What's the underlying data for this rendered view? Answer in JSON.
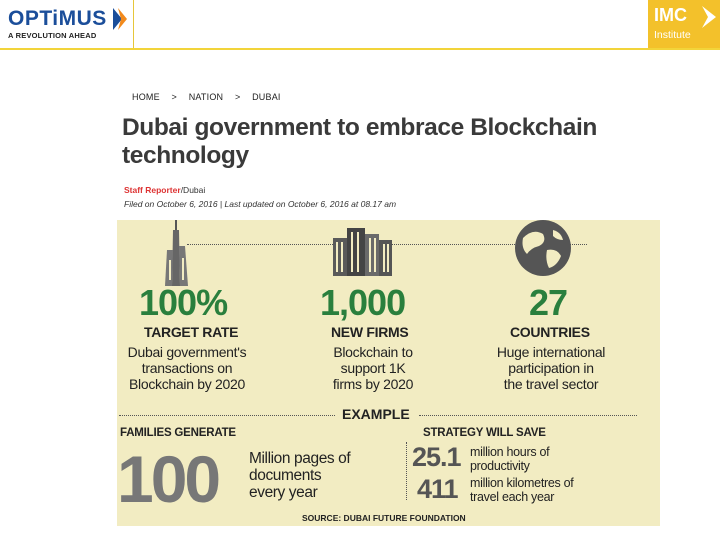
{
  "header": {
    "logo_name": "OPTiMUS",
    "logo_tagline": "A REVOLUTION AHEAD",
    "partner_logo": "IMC",
    "partner_sub": "Institute"
  },
  "breadcrumb": [
    "HOME",
    ">",
    "NATION",
    ">",
    "DUBAI"
  ],
  "article": {
    "headline": "Dubai government to embrace Blockchain technology",
    "reporter": "Staff Reporter",
    "location": "/Dubai",
    "filed": "Filed on October 6, 2016 | Last updated on October 6, 2016 at 08.17 am"
  },
  "infographic": {
    "stats": [
      {
        "number": "100%",
        "label": "TARGET RATE",
        "desc": [
          "Dubai government's",
          "transactions on",
          "Blockchain by 2020"
        ],
        "icon": "burj-tower-icon"
      },
      {
        "number": "1,000",
        "label": "NEW FIRMS",
        "desc": [
          "Blockchain to",
          "support 1K",
          "firms by 2020"
        ],
        "icon": "buildings-icon"
      },
      {
        "number": "27",
        "label": "COUNTRIES",
        "desc": [
          "Huge international",
          "participation in",
          "the travel sector"
        ],
        "icon": "globe-icon"
      }
    ],
    "example_label": "EXAMPLE",
    "families_label": "FAMILIES GENERATE",
    "families_value": "100",
    "families_text": [
      "Million pages of",
      "documents",
      "every year"
    ],
    "strategy_label": "STRATEGY WILL SAVE",
    "savings": [
      {
        "value": "25.1",
        "text": [
          "million hours of",
          "productivity"
        ]
      },
      {
        "value": "411",
        "text": [
          "million kilometres of",
          "travel each year"
        ]
      }
    ],
    "source": "SOURCE: DUBAI FUTURE FOUNDATION",
    "colors": {
      "accent_green": "#2a7f3d",
      "panel_bg": "#f2ecc2",
      "brand_yellow": "#f3c12b",
      "brand_blue": "#1b4e9a"
    }
  }
}
